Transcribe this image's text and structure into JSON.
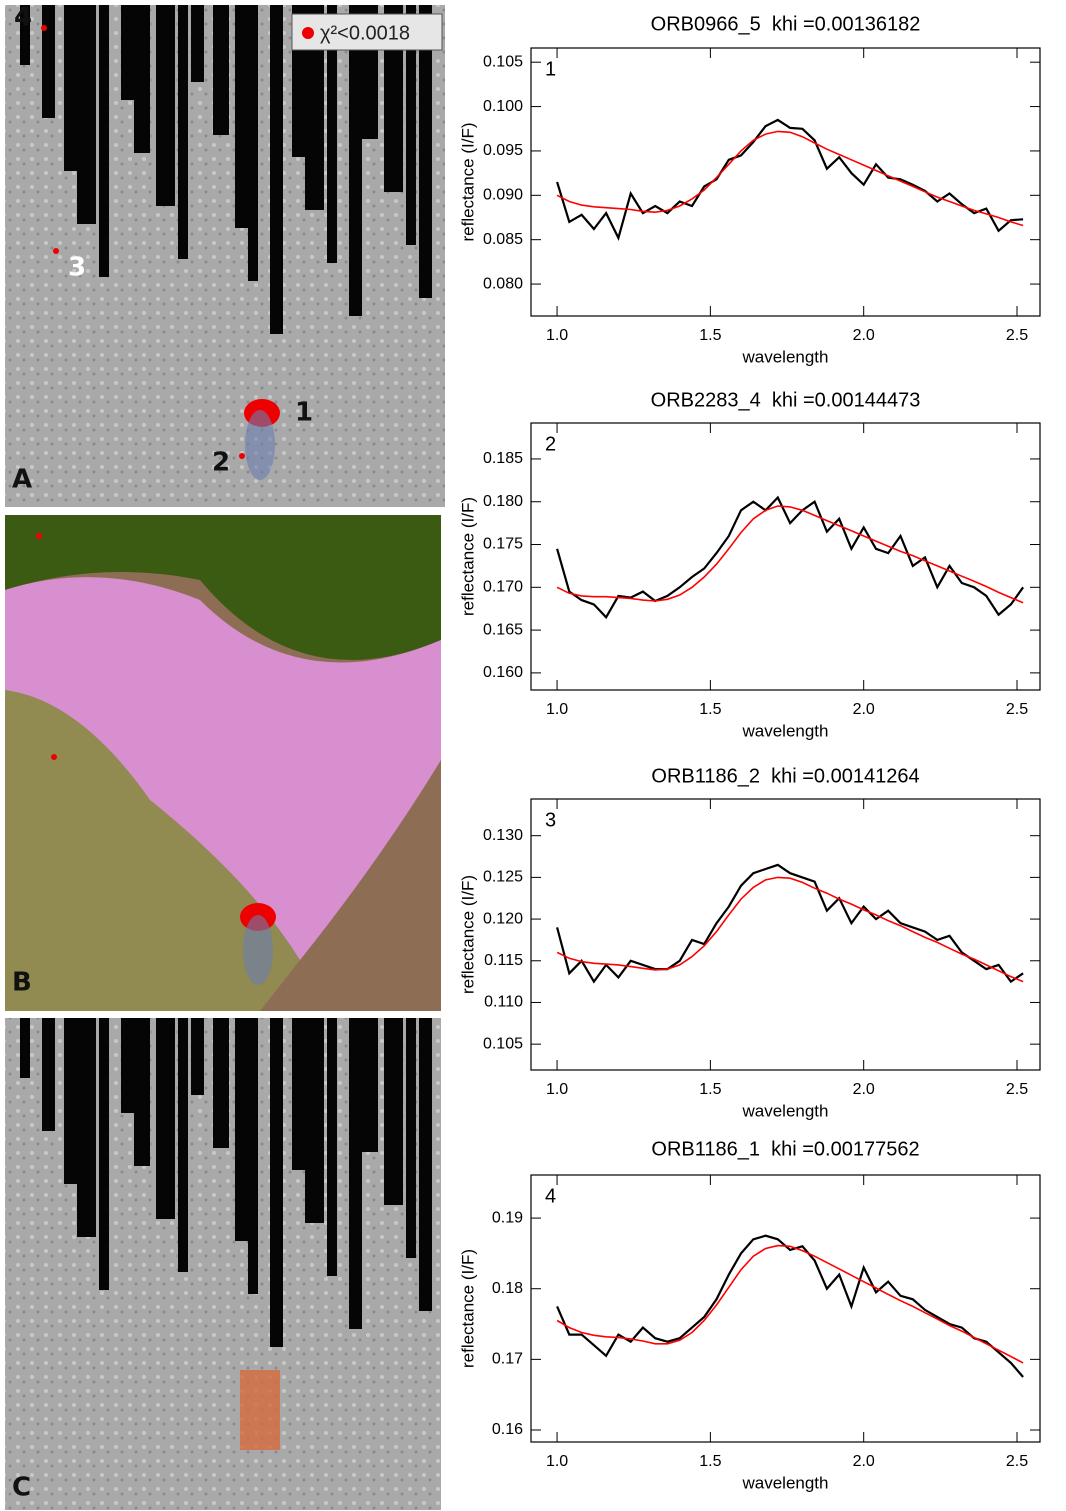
{
  "maps": {
    "panels": [
      "A",
      "B",
      "C"
    ],
    "sites": [
      "1",
      "2",
      "3",
      "4"
    ],
    "legend": "χ²<0.0018"
  },
  "chart_data": [
    {
      "type": "line",
      "title": "ORB0966_5  khi =0.00136182",
      "annotation": "1",
      "xlabel": "wavelength",
      "ylabel": "reflectance (I/F)",
      "x": [
        1.0,
        1.04,
        1.08,
        1.12,
        1.16,
        1.2,
        1.24,
        1.28,
        1.32,
        1.36,
        1.4,
        1.44,
        1.48,
        1.52,
        1.56,
        1.6,
        1.64,
        1.68,
        1.72,
        1.76,
        1.8,
        1.84,
        1.88,
        1.92,
        1.96,
        2.0,
        2.04,
        2.08,
        2.12,
        2.16,
        2.2,
        2.24,
        2.28,
        2.32,
        2.36,
        2.4,
        2.44,
        2.48,
        2.52
      ],
      "series": [
        {
          "color": "#000000",
          "values": [
            0.0915,
            0.087,
            0.0878,
            0.0862,
            0.088,
            0.0852,
            0.0902,
            0.088,
            0.0888,
            0.088,
            0.0893,
            0.0888,
            0.091,
            0.0918,
            0.094,
            0.0945,
            0.096,
            0.0978,
            0.0985,
            0.0976,
            0.0975,
            0.0962,
            0.093,
            0.0943,
            0.0925,
            0.0912,
            0.0935,
            0.092,
            0.0918,
            0.0912,
            0.0905,
            0.0893,
            0.0902,
            0.089,
            0.088,
            0.0885,
            0.086,
            0.0872,
            0.0873
          ]
        },
        {
          "color": "#ff0000",
          "values": [
            0.09,
            0.0893,
            0.0889,
            0.0887,
            0.0886,
            0.0885,
            0.0884,
            0.0882,
            0.0881,
            0.0883,
            0.0888,
            0.0896,
            0.0906,
            0.092,
            0.0935,
            0.095,
            0.0962,
            0.0969,
            0.0972,
            0.0971,
            0.0966,
            0.0959,
            0.0952,
            0.0946,
            0.094,
            0.0934,
            0.0928,
            0.0922,
            0.0916,
            0.091,
            0.0904,
            0.0898,
            0.0893,
            0.0888,
            0.0883,
            0.0879,
            0.0875,
            0.087,
            0.0866
          ]
        }
      ],
      "xlim": [
        0.915,
        2.575
      ],
      "xticks": [
        {
          "value": 1,
          "label": "1.0"
        },
        1.5,
        {
          "value": 2,
          "label": "2.0"
        },
        2.5
      ],
      "ylim": [
        0.0764,
        0.1066
      ],
      "yticks": [
        {
          "value": 0.08,
          "label": "0.080"
        },
        0.085,
        {
          "value": 0.09,
          "label": "0.090"
        },
        0.095,
        {
          "value": 0.1,
          "label": "0.100"
        },
        0.105
      ]
    },
    {
      "type": "line",
      "title": "ORB2283_4  khi =0.00144473",
      "annotation": "2",
      "xlabel": "wavelength",
      "ylabel": "reflectance (I/F)",
      "x": [
        1.0,
        1.04,
        1.08,
        1.12,
        1.16,
        1.2,
        1.24,
        1.28,
        1.32,
        1.36,
        1.4,
        1.44,
        1.48,
        1.52,
        1.56,
        1.6,
        1.64,
        1.68,
        1.72,
        1.76,
        1.8,
        1.84,
        1.88,
        1.92,
        1.96,
        2.0,
        2.04,
        2.08,
        2.12,
        2.16,
        2.2,
        2.24,
        2.28,
        2.32,
        2.36,
        2.4,
        2.44,
        2.48,
        2.52
      ],
      "series": [
        {
          "color": "#000000",
          "values": [
            0.1745,
            0.1695,
            0.1685,
            0.168,
            0.1665,
            0.169,
            0.1688,
            0.1695,
            0.1684,
            0.169,
            0.17,
            0.1712,
            0.1722,
            0.174,
            0.176,
            0.179,
            0.18,
            0.179,
            0.1805,
            0.1775,
            0.179,
            0.18,
            0.1765,
            0.178,
            0.1745,
            0.177,
            0.1745,
            0.174,
            0.176,
            0.1725,
            0.1735,
            0.17,
            0.1725,
            0.1705,
            0.17,
            0.169,
            0.1668,
            0.168,
            0.17
          ]
        },
        {
          "color": "#ff0000",
          "values": [
            0.17,
            0.1693,
            0.169,
            0.1689,
            0.1689,
            0.1688,
            0.1687,
            0.1685,
            0.1684,
            0.1686,
            0.1691,
            0.17,
            0.1712,
            0.1727,
            0.1745,
            0.1764,
            0.178,
            0.179,
            0.1795,
            0.1794,
            0.179,
            0.1784,
            0.1778,
            0.1772,
            0.1766,
            0.176,
            0.1754,
            0.1748,
            0.1742,
            0.1737,
            0.1731,
            0.1725,
            0.1719,
            0.1713,
            0.1707,
            0.1701,
            0.1694,
            0.1688,
            0.1682
          ]
        }
      ],
      "xlim": [
        0.915,
        2.575
      ],
      "xticks": [
        {
          "value": 1,
          "label": "1.0"
        },
        1.5,
        {
          "value": 2,
          "label": "2.0"
        },
        2.5
      ],
      "ylim": [
        0.158,
        0.1892
      ],
      "yticks": [
        {
          "value": 0.16,
          "label": "0.160"
        },
        0.165,
        {
          "value": 0.17,
          "label": "0.170"
        },
        0.175,
        {
          "value": 0.18,
          "label": "0.180"
        },
        0.185
      ]
    },
    {
      "type": "line",
      "title": "ORB1186_2  khi =0.00141264",
      "annotation": "3",
      "xlabel": "wavelength",
      "ylabel": "reflectance (I/F)",
      "x": [
        1.0,
        1.04,
        1.08,
        1.12,
        1.16,
        1.2,
        1.24,
        1.28,
        1.32,
        1.36,
        1.4,
        1.44,
        1.48,
        1.52,
        1.56,
        1.6,
        1.64,
        1.68,
        1.72,
        1.76,
        1.8,
        1.84,
        1.88,
        1.92,
        1.96,
        2.0,
        2.04,
        2.08,
        2.12,
        2.16,
        2.2,
        2.24,
        2.28,
        2.32,
        2.36,
        2.4,
        2.44,
        2.48,
        2.52
      ],
      "series": [
        {
          "color": "#000000",
          "values": [
            0.119,
            0.1135,
            0.115,
            0.1125,
            0.1145,
            0.113,
            0.115,
            0.1145,
            0.114,
            0.114,
            0.115,
            0.1175,
            0.117,
            0.1195,
            0.1215,
            0.124,
            0.1255,
            0.126,
            0.1265,
            0.1255,
            0.125,
            0.1245,
            0.121,
            0.1225,
            0.1195,
            0.1215,
            0.12,
            0.121,
            0.1195,
            0.119,
            0.1185,
            0.1175,
            0.118,
            0.116,
            0.115,
            0.114,
            0.1145,
            0.1125,
            0.1135
          ]
        },
        {
          "color": "#ff0000",
          "values": [
            0.116,
            0.1153,
            0.1149,
            0.1147,
            0.1146,
            0.1145,
            0.1143,
            0.1141,
            0.1139,
            0.114,
            0.1145,
            0.1155,
            0.1168,
            0.1185,
            0.1205,
            0.1224,
            0.1238,
            0.1247,
            0.125,
            0.1249,
            0.1244,
            0.1237,
            0.1231,
            0.1224,
            0.1218,
            0.1211,
            0.1205,
            0.1198,
            0.1192,
            0.1185,
            0.1178,
            0.1172,
            0.1165,
            0.1158,
            0.1152,
            0.1145,
            0.1138,
            0.1131,
            0.1125
          ]
        }
      ],
      "xlim": [
        0.915,
        2.575
      ],
      "xticks": [
        {
          "value": 1,
          "label": "1.0"
        },
        1.5,
        {
          "value": 2,
          "label": "2.0"
        },
        2.5
      ],
      "ylim": [
        0.1019,
        0.1344
      ],
      "yticks": [
        0.105,
        {
          "value": 0.11,
          "label": "0.110"
        },
        0.115,
        {
          "value": 0.12,
          "label": "0.120"
        },
        0.125,
        {
          "value": 0.13,
          "label": "0.130"
        }
      ]
    },
    {
      "type": "line",
      "title": "ORB1186_1  khi =0.00177562",
      "annotation": "4",
      "xlabel": "wavelength",
      "ylabel": "reflectance (I/F)",
      "x": [
        1.0,
        1.04,
        1.08,
        1.12,
        1.16,
        1.2,
        1.24,
        1.28,
        1.32,
        1.36,
        1.4,
        1.44,
        1.48,
        1.52,
        1.56,
        1.6,
        1.64,
        1.68,
        1.72,
        1.76,
        1.8,
        1.84,
        1.88,
        1.92,
        1.96,
        2.0,
        2.04,
        2.08,
        2.12,
        2.16,
        2.2,
        2.24,
        2.28,
        2.32,
        2.36,
        2.4,
        2.44,
        2.48,
        2.52
      ],
      "series": [
        {
          "color": "#000000",
          "values": [
            0.1775,
            0.1735,
            0.1735,
            0.172,
            0.1705,
            0.1735,
            0.1725,
            0.1745,
            0.173,
            0.1725,
            0.173,
            0.1745,
            0.176,
            0.1785,
            0.182,
            0.185,
            0.187,
            0.1875,
            0.187,
            0.1855,
            0.186,
            0.184,
            0.18,
            0.182,
            0.1775,
            0.183,
            0.1795,
            0.181,
            0.179,
            0.1785,
            0.177,
            0.176,
            0.175,
            0.1745,
            0.173,
            0.1725,
            0.171,
            0.1695,
            0.1675
          ]
        },
        {
          "color": "#ff0000",
          "values": [
            0.1755,
            0.1745,
            0.1738,
            0.1734,
            0.1732,
            0.1731,
            0.1729,
            0.1726,
            0.1722,
            0.1722,
            0.1727,
            0.1738,
            0.1755,
            0.1777,
            0.1802,
            0.1827,
            0.1846,
            0.1857,
            0.1861,
            0.186,
            0.1854,
            0.1846,
            0.1837,
            0.1828,
            0.1819,
            0.181,
            0.1801,
            0.1792,
            0.1783,
            0.1775,
            0.1766,
            0.1757,
            0.1748,
            0.174,
            0.1731,
            0.1722,
            0.1713,
            0.1704,
            0.1695
          ]
        }
      ],
      "xlim": [
        0.915,
        2.575
      ],
      "xticks": [
        {
          "value": 1,
          "label": "1.0"
        },
        1.5,
        {
          "value": 2,
          "label": "2.0"
        },
        2.5
      ],
      "ylim": [
        0.1583,
        0.1961
      ],
      "yticks": [
        0.16,
        0.17,
        0.18,
        0.19
      ]
    }
  ]
}
